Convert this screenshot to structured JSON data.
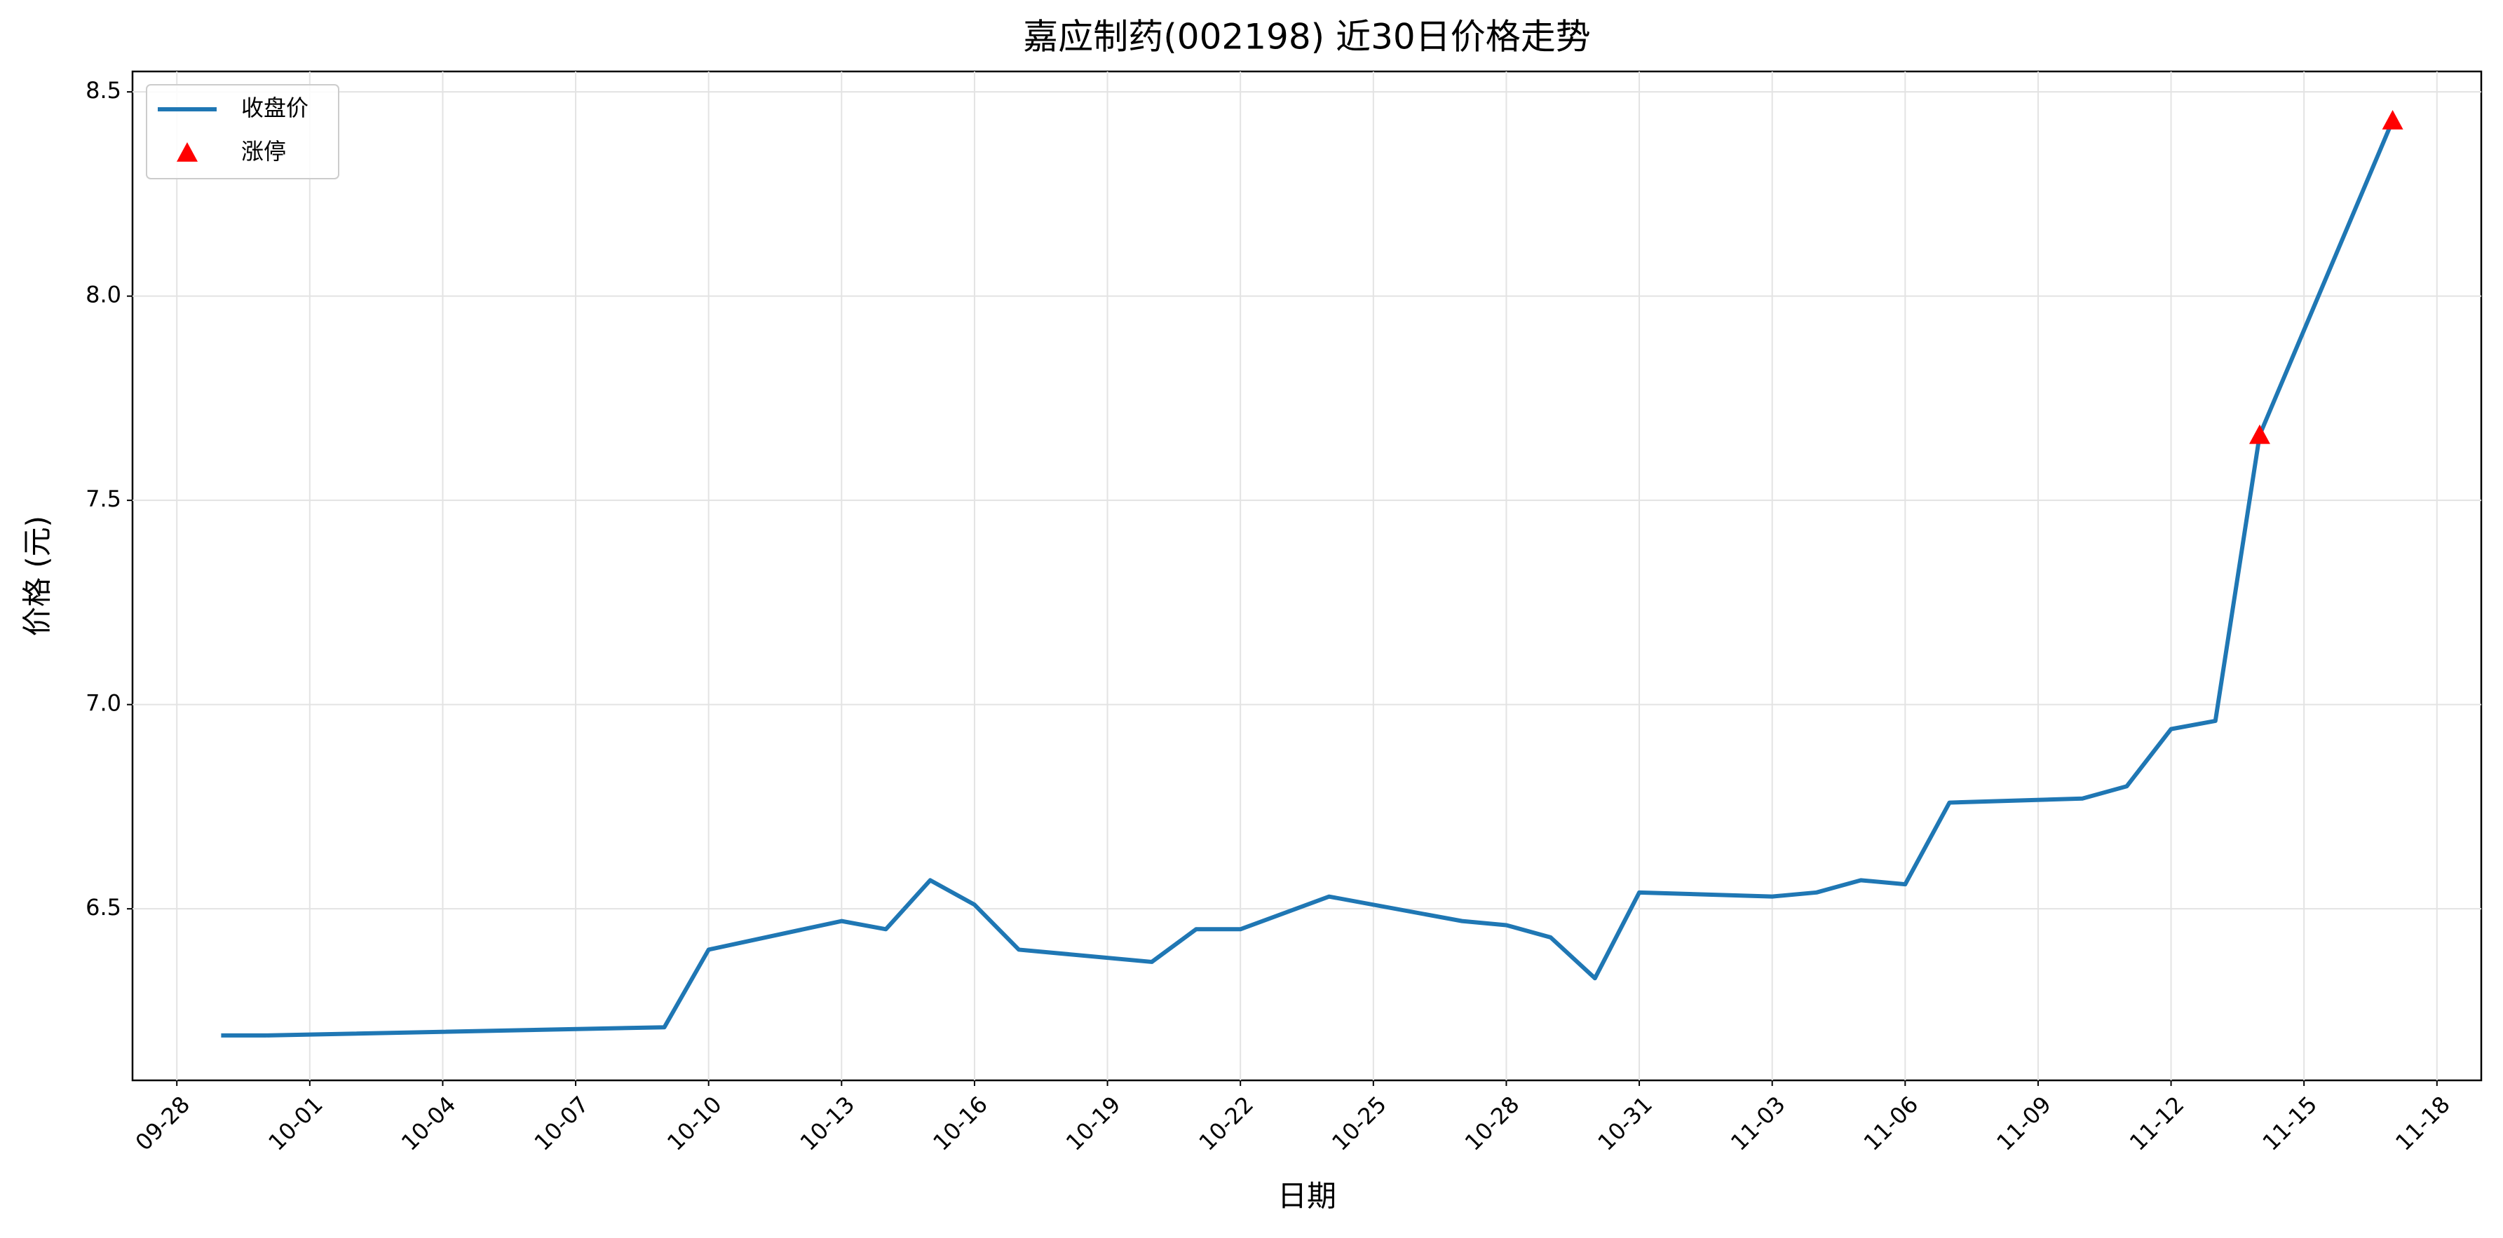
{
  "chart_data": {
    "type": "line",
    "title": "嘉应制药(002198) 近30日价格走势",
    "x_label": "日期",
    "y_label": "价格 (元)",
    "grid": true,
    "legend": "upper left",
    "xlim": [
      "09-27",
      "11-19"
    ],
    "xticks": [
      "09-28",
      "10-01",
      "10-04",
      "10-07",
      "10-10",
      "10-13",
      "10-16",
      "10-19",
      "10-22",
      "10-25",
      "10-28",
      "10-31",
      "11-03",
      "11-06",
      "11-09",
      "11-12",
      "11-15",
      "11-18"
    ],
    "ylim": [
      6.08,
      8.55
    ],
    "yticks": [
      6.5,
      {
        "value": 7,
        "label": "7.0"
      },
      7.5,
      {
        "value": 8,
        "label": "8.0"
      },
      8.5
    ],
    "series": [
      {
        "name": "收盘价",
        "type": "line",
        "color": "#1f77b4",
        "x": [
          "09-29",
          "09-30",
          "10-09",
          "10-10",
          "10-13",
          "10-14",
          "10-15",
          "10-16",
          "10-17",
          "10-20",
          "10-21",
          "10-22",
          "10-24",
          "10-27",
          "10-28",
          "10-29",
          "10-30",
          "10-31",
          "11-03",
          "11-04",
          "11-05",
          "11-06",
          "11-07",
          "11-10",
          "11-11",
          "11-12",
          "11-13",
          "11-14",
          "11-17"
        ],
        "values": [
          6.19,
          6.19,
          6.21,
          6.4,
          6.47,
          6.45,
          6.57,
          6.51,
          6.4,
          6.37,
          6.45,
          6.45,
          6.53,
          6.47,
          6.46,
          6.43,
          6.33,
          6.54,
          6.53,
          6.54,
          6.57,
          6.56,
          6.76,
          6.77,
          6.8,
          6.94,
          6.96,
          7.66,
          8.43
        ]
      },
      {
        "name": "涨停",
        "type": "scatter",
        "marker": "triangle",
        "color": "#ff0000",
        "x": [
          "11-14",
          "11-17"
        ],
        "values": [
          7.66,
          8.43
        ]
      }
    ]
  }
}
